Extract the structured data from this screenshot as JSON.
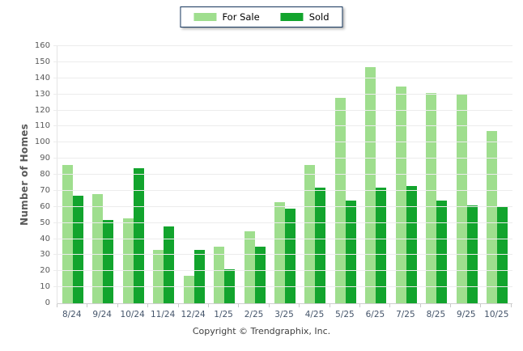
{
  "legend": {
    "items": [
      {
        "label": "For Sale",
        "color": "#9FDE8E"
      },
      {
        "label": "Sold",
        "color": "#12A42D"
      }
    ],
    "border_color": "#17375E"
  },
  "chart_data": {
    "type": "bar",
    "title": "",
    "categories": [
      "8/24",
      "9/24",
      "10/24",
      "11/24",
      "12/24",
      "1/25",
      "2/25",
      "3/25",
      "4/25",
      "5/25",
      "6/25",
      "7/25",
      "8/25",
      "9/25",
      "10/25"
    ],
    "series": [
      {
        "name": "For Sale",
        "color": "#9FDE8E",
        "values": [
          86,
          68,
          53,
          33,
          17,
          35,
          45,
          63,
          86,
          128,
          147,
          135,
          131,
          130,
          107
        ]
      },
      {
        "name": "Sold",
        "color": "#12A42D",
        "values": [
          67,
          52,
          84,
          48,
          33,
          21,
          35,
          59,
          72,
          64,
          72,
          73,
          64,
          61,
          60
        ]
      }
    ],
    "xlabel": "",
    "ylabel": "Number of Homes",
    "ylim": [
      0,
      160
    ],
    "yticks": [
      0,
      10,
      20,
      30,
      40,
      50,
      60,
      70,
      80,
      90,
      100,
      110,
      120,
      130,
      140,
      150,
      160
    ],
    "grid": true,
    "legend_position": "top-center",
    "colors": {
      "gridline": "#ECECEC",
      "baseline": "#CFCFCF",
      "y_tick_label": "#595959",
      "x_tick_label": "#44546A",
      "axis_title": "#595959"
    }
  },
  "footer": {
    "copyright": "Copyright © Trendgraphix, Inc."
  }
}
